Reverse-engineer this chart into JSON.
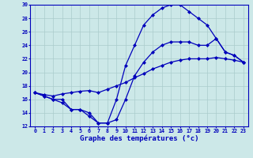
{
  "xlabel": "Graphe des températures (°c)",
  "background_color": "#cce8e8",
  "line_color": "#0000bb",
  "hours": [
    0,
    1,
    2,
    3,
    4,
    5,
    6,
    7,
    8,
    9,
    10,
    11,
    12,
    13,
    14,
    15,
    16,
    17,
    18,
    19,
    20,
    21,
    22,
    23
  ],
  "temp_max": [
    17.0,
    16.5,
    16.0,
    16.0,
    14.5,
    14.5,
    13.5,
    12.5,
    12.5,
    16.0,
    21.0,
    24.0,
    27.0,
    28.5,
    29.5,
    30.0,
    30.0,
    29.0,
    28.0,
    27.0,
    25.0,
    23.0,
    22.5,
    21.5
  ],
  "temp_mean": [
    17.0,
    16.7,
    16.5,
    16.8,
    17.0,
    17.2,
    17.3,
    17.0,
    17.5,
    18.0,
    18.5,
    19.2,
    19.8,
    20.5,
    21.0,
    21.5,
    21.8,
    22.0,
    22.0,
    22.0,
    22.2,
    22.0,
    21.8,
    21.5
  ],
  "temp_min": [
    17.0,
    16.5,
    16.0,
    15.5,
    14.5,
    14.5,
    14.0,
    12.5,
    12.5,
    13.0,
    16.0,
    19.5,
    21.5,
    23.0,
    24.0,
    24.5,
    24.5,
    24.5,
    24.0,
    24.0,
    25.0,
    23.0,
    22.5,
    21.5
  ],
  "ylim": [
    12,
    30
  ],
  "xlim_min": -0.5,
  "xlim_max": 23.5,
  "yticks": [
    12,
    14,
    16,
    18,
    20,
    22,
    24,
    26,
    28,
    30
  ],
  "xticks": [
    0,
    1,
    2,
    3,
    4,
    5,
    6,
    7,
    8,
    9,
    10,
    11,
    12,
    13,
    14,
    15,
    16,
    17,
    18,
    19,
    20,
    21,
    22,
    23
  ],
  "grid_color": "#aacccc",
  "marker": "D",
  "markersize": 2.0,
  "linewidth": 0.9,
  "tick_fontsize": 4.8,
  "xlabel_fontsize": 6.5
}
